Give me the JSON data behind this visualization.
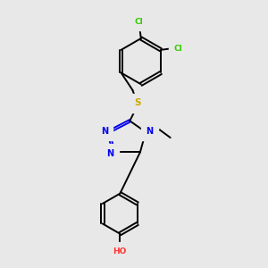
{
  "bg_color": "#e8e8e8",
  "bond_color": "#000000",
  "n_color": "#0000ee",
  "s_color": "#ccaa00",
  "o_color": "#ff3333",
  "cl_color": "#33cc00",
  "lw": 1.4,
  "dbo": 0.018,
  "xlim": [
    1.5,
    6.5
  ],
  "ylim": [
    0.3,
    9.8
  ]
}
